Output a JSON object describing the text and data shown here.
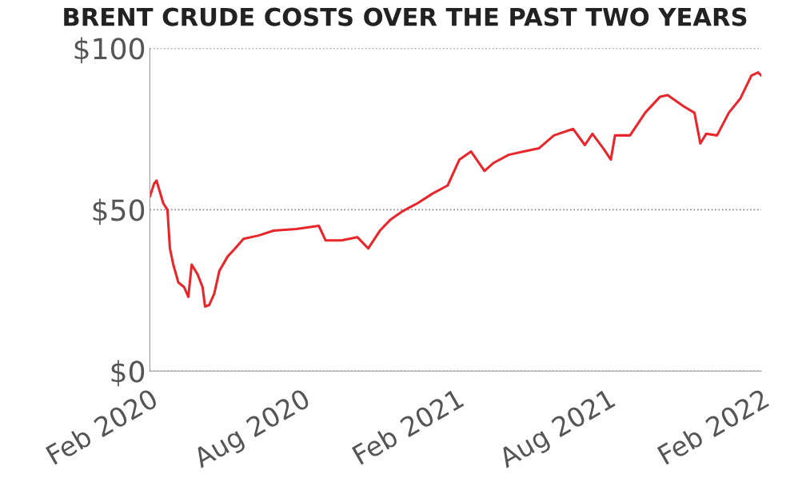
{
  "chart_data": {
    "type": "line",
    "title": "BRENT CRUDE COSTS OVER THE PAST TWO YEARS",
    "x": [
      "2020-02-01",
      "2020-02-06",
      "2020-02-09",
      "2020-02-17",
      "2020-02-22",
      "2020-02-25",
      "2020-02-29",
      "2020-03-06",
      "2020-03-13",
      "2020-03-18",
      "2020-03-22",
      "2020-03-29",
      "2020-04-04",
      "2020-04-07",
      "2020-04-12",
      "2020-04-18",
      "2020-04-24",
      "2020-05-04",
      "2020-05-13",
      "2020-05-23",
      "2020-06-10",
      "2020-06-28",
      "2020-07-25",
      "2020-08-21",
      "2020-08-29",
      "2020-09-17",
      "2020-10-06",
      "2020-10-19",
      "2020-11-02",
      "2020-11-15",
      "2020-11-29",
      "2020-12-17",
      "2021-01-04",
      "2021-01-22",
      "2021-02-05",
      "2021-02-19",
      "2021-03-07",
      "2021-03-18",
      "2021-04-05",
      "2021-04-23",
      "2021-05-11",
      "2021-05-29",
      "2021-06-21",
      "2021-07-05",
      "2021-07-14",
      "2021-07-27",
      "2021-08-05",
      "2021-08-10",
      "2021-08-28",
      "2021-09-15",
      "2021-10-03",
      "2021-10-12",
      "2021-10-31",
      "2021-11-13",
      "2021-11-20",
      "2021-11-27",
      "2021-12-10",
      "2021-12-24",
      "2022-01-07",
      "2022-01-20",
      "2022-01-28",
      "2022-02-01"
    ],
    "series": [
      {
        "color": "#e8262b",
        "values": [
          54,
          58,
          59,
          52,
          50,
          38,
          33,
          27.5,
          26,
          23,
          33,
          30,
          26,
          20,
          20.5,
          24,
          31,
          35.5,
          38,
          41,
          42,
          43.5,
          44,
          45,
          40.5,
          40.5,
          41.5,
          38,
          43.5,
          47,
          49.5,
          52,
          55,
          57.5,
          65.5,
          68,
          62,
          64.5,
          67,
          68,
          69,
          73,
          75,
          70,
          73.5,
          69,
          65.5,
          73,
          73,
          80,
          85,
          85.5,
          82,
          80,
          70.5,
          73.5,
          73,
          80,
          84.5,
          91.5,
          92.5,
          91.5
        ]
      }
    ],
    "xlim": [
      "2020-02-01",
      "2022-02-01"
    ],
    "xticks": [
      {
        "value": "2020-02-01",
        "label": "Feb 2020"
      },
      {
        "value": "2020-08-01",
        "label": "Aug 2020"
      },
      {
        "value": "2021-02-01",
        "label": "Feb 2021"
      },
      {
        "value": "2021-08-01",
        "label": "Aug 2021"
      },
      {
        "value": "2022-02-01",
        "label": "Feb 2022"
      }
    ],
    "ylim": [
      0,
      100
    ],
    "yticks": [
      {
        "value": 0,
        "label": "$0"
      },
      {
        "value": 50,
        "label": "$50"
      },
      {
        "value": 100,
        "label": "$100"
      }
    ],
    "grid": "y",
    "line_style": "solid",
    "marker": "none"
  }
}
